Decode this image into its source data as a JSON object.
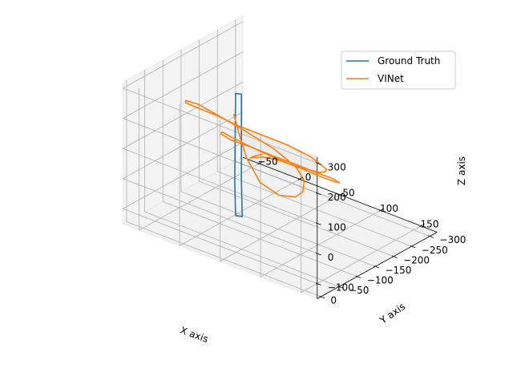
{
  "chart_data": {
    "type": "line",
    "projection": "3d",
    "xlabel": "X axis",
    "ylabel": "Y axis",
    "zlabel": "Z axis",
    "x_ticks": [
      "−50",
      "0",
      "50",
      "100",
      "150"
    ],
    "y_ticks": [
      "0",
      "−50",
      "−100",
      "−150",
      "−200",
      "−250",
      "−300"
    ],
    "z_ticks": [
      "300",
      "200",
      "100",
      "0",
      "−100"
    ],
    "xlim": [
      -70,
      170
    ],
    "ylim": [
      -320,
      10
    ],
    "zlim": [
      -150,
      320
    ],
    "grid": true,
    "legend_position": "top-right",
    "series": [
      {
        "name": "Ground Truth",
        "color": "#1f77b4",
        "points": [
          [
            31,
            -75,
            330
          ],
          [
            36,
            -80,
            330
          ],
          [
            36,
            -80,
            40
          ],
          [
            37,
            -80,
            -75
          ],
          [
            31,
            -75,
            -75
          ],
          [
            30,
            -75,
            40
          ],
          [
            31,
            -75,
            330
          ]
        ]
      },
      {
        "name": "VINet",
        "color": "#ff7f0e",
        "points": [
          [
            -34,
            -215,
            100
          ],
          [
            -21,
            -201,
            55
          ],
          [
            -3,
            -181,
            10
          ],
          [
            23,
            -160,
            -30
          ],
          [
            54,
            -144,
            -30
          ],
          [
            80,
            -131,
            0
          ],
          [
            94,
            -120,
            40
          ],
          [
            100,
            -110,
            90
          ],
          [
            97,
            -95,
            140
          ],
          [
            79,
            -75,
            195
          ],
          [
            52,
            -55,
            240
          ],
          [
            21,
            -45,
            270
          ],
          [
            -4,
            -50,
            275
          ],
          [
            -24,
            -60,
            260
          ],
          [
            -33,
            -80,
            230
          ],
          [
            -32,
            -105,
            200
          ],
          [
            -20,
            -135,
            165
          ],
          [
            -5,
            -160,
            130
          ],
          [
            18,
            -182,
            105
          ],
          [
            41,
            -195,
            90
          ],
          [
            73,
            -190,
            85
          ],
          [
            94,
            -170,
            95
          ],
          [
            110,
            -150,
            110
          ],
          [
            118,
            -128,
            125
          ],
          [
            120,
            -106,
            140
          ],
          [
            118,
            -85,
            160
          ],
          [
            104,
            -66,
            175
          ],
          [
            82,
            -55,
            190
          ],
          [
            55,
            -52,
            200
          ],
          [
            32,
            -58,
            200
          ],
          [
            14,
            -75,
            185
          ],
          [
            6,
            -90,
            160
          ],
          [
            10,
            -110,
            130
          ],
          [
            25,
            -130,
            110
          ],
          [
            48,
            -142,
            95
          ],
          [
            74,
            -147,
            90
          ],
          [
            102,
            -145,
            92
          ],
          [
            124,
            -138,
            100
          ],
          [
            137,
            -125,
            110
          ],
          [
            139,
            -110,
            125
          ],
          [
            131,
            -95,
            140
          ],
          [
            112,
            -80,
            160
          ],
          [
            88,
            -70,
            170
          ],
          [
            67,
            -70,
            160
          ],
          [
            53,
            -76,
            140
          ],
          [
            47,
            -80,
            130
          ],
          [
            52,
            -84,
            140
          ],
          [
            59,
            -86,
            150
          ]
        ]
      }
    ]
  }
}
